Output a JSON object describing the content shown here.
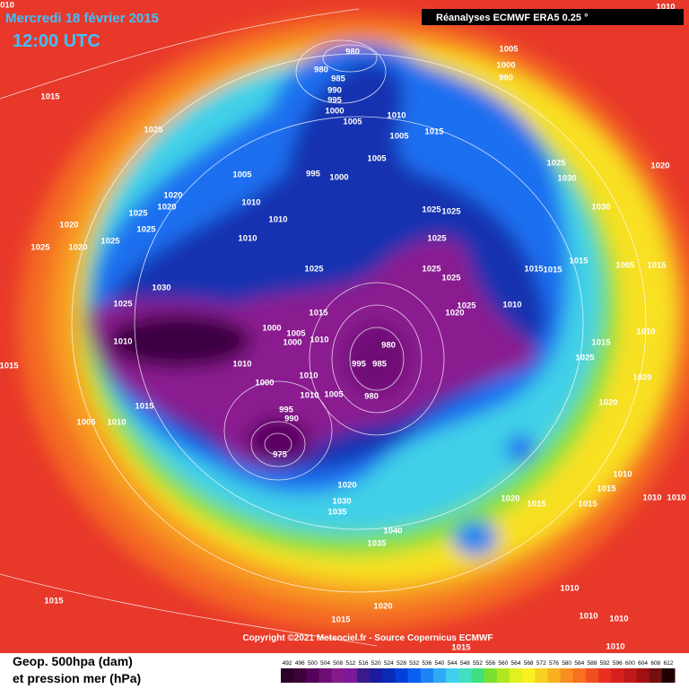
{
  "header": {
    "date": "Mercredi 18 février 2015",
    "time": "12:00 UTC",
    "source_box": "Réanalyses ECMWF ERA5 0.25 °"
  },
  "copyright": "Copyright ©2021 Meteociel.fr - Source Copernicus ECMWF",
  "legend": {
    "line1": "Geop. 500hpa (dam)",
    "line2": "et pression mer (hPa)",
    "scale_ticks": [
      492,
      496,
      500,
      504,
      508,
      512,
      516,
      520,
      524,
      528,
      532,
      536,
      540,
      544,
      548,
      552,
      556,
      560,
      564,
      568,
      572,
      576,
      580,
      584,
      588,
      592,
      596,
      600,
      604,
      608,
      612
    ],
    "scale_colors": [
      "#2d0028",
      "#3e0038",
      "#55005a",
      "#6e0e74",
      "#861a8c",
      "#7a1a9a",
      "#3a1a8c",
      "#1a1a9c",
      "#0a2ab8",
      "#0040d8",
      "#0a5ef0",
      "#1a84f4",
      "#30aaf4",
      "#40d0ee",
      "#40e0c0",
      "#40e080",
      "#7ae030",
      "#b0e820",
      "#e0f020",
      "#f8f020",
      "#f8d020",
      "#f8b020",
      "#f89020",
      "#f87020",
      "#f05020",
      "#e83020",
      "#d82020",
      "#c01818",
      "#a01010",
      "#701010",
      "#200000"
    ]
  },
  "isobar_labels": [
    "980",
    "980",
    "985",
    "990",
    "995",
    "1000",
    "1005",
    "1010",
    "1005",
    "1015",
    "1005",
    "1000",
    "990",
    "1025",
    "1015",
    "995",
    "1000",
    "1005",
    "1005",
    "1010",
    "1010",
    "1010",
    "1020",
    "1020",
    "1025",
    "1020",
    "1025",
    "1025",
    "1020",
    "1025",
    "1030",
    "1025",
    "1025",
    "1025",
    "1025",
    "1025",
    "1025",
    "1025",
    "1020",
    "1025",
    "1010",
    "1025",
    "1030",
    "1030",
    "1020",
    "1015",
    "1015",
    "1015",
    "1005",
    "1015",
    "1015",
    "1010",
    "1015",
    "1000",
    "1005",
    "1000",
    "1010",
    "980",
    "995",
    "985",
    "1010",
    "1000",
    "1010",
    "1010",
    "1005",
    "980",
    "1015",
    "1005",
    "1010",
    "995",
    "990",
    "975",
    "1025",
    "1015",
    "1010",
    "1020",
    "1020",
    "1010",
    "1015",
    "1010",
    "1015",
    "1020",
    "1015",
    "1020",
    "1030",
    "1035",
    "1040",
    "1035",
    "1020",
    "1015",
    "1015",
    "1015",
    "1010",
    "1010",
    "1010",
    "1010",
    "1010",
    "010",
    "1010"
  ]
}
